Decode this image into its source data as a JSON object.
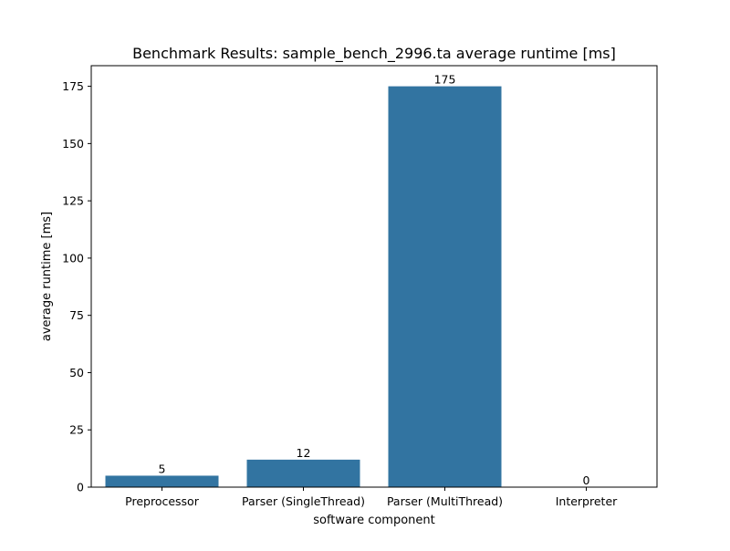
{
  "chart_data": {
    "type": "bar",
    "title": "Benchmark Results: sample_bench_2996.ta average runtime [ms]",
    "xlabel": "software component",
    "ylabel": "average runtime [ms]",
    "categories": [
      "Preprocessor",
      "Parser (SingleThread)",
      "Parser (MultiThread)",
      "Interpreter"
    ],
    "values": [
      5,
      12,
      175,
      0
    ],
    "data_labels": [
      "5",
      "12",
      "175",
      "0"
    ],
    "ylim": [
      0,
      184
    ],
    "yticks": [
      0,
      25,
      50,
      75,
      100,
      125,
      150,
      175
    ],
    "ytick_labels": [
      "0",
      "25",
      "50",
      "75",
      "100",
      "125",
      "150",
      "175"
    ],
    "grid": false,
    "bar_color": "#3274a1"
  }
}
